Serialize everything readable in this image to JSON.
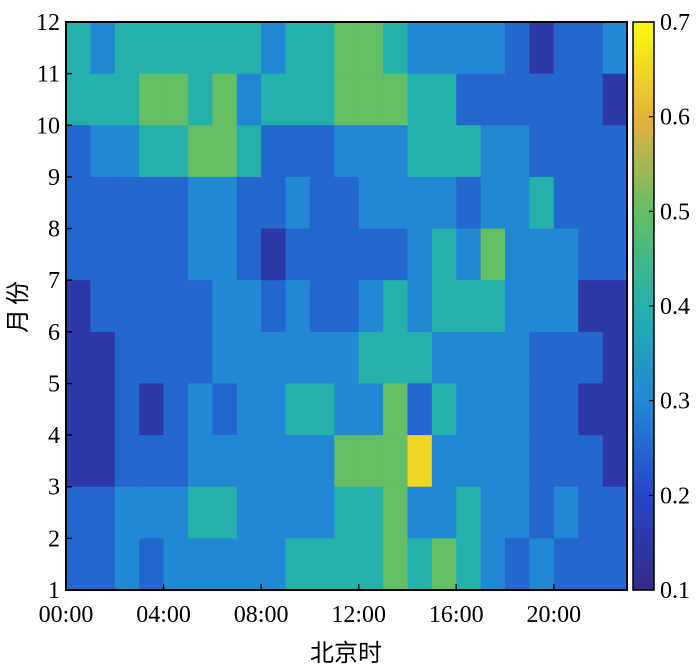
{
  "chart_data": {
    "type": "heatmap",
    "xlabel": "北京时",
    "ylabel": "月份",
    "x_tick_labels": [
      "00:00",
      "04:00",
      "08:00",
      "12:00",
      "16:00",
      "20:00"
    ],
    "x_tick_hours": [
      0,
      4,
      8,
      12,
      16,
      20
    ],
    "x_range_hours": [
      0,
      23
    ],
    "y_tick_labels": [
      "1",
      "2",
      "3",
      "4",
      "5",
      "6",
      "7",
      "8",
      "9",
      "10",
      "11",
      "12"
    ],
    "y_range": [
      1,
      12
    ],
    "colorbar": {
      "min": 0.1,
      "max": 0.7,
      "tick_labels": [
        "0.1",
        "0.2",
        "0.3",
        "0.4",
        "0.5",
        "0.6",
        "0.7"
      ],
      "tick_values": [
        0.1,
        0.2,
        0.3,
        0.4,
        0.5,
        0.6,
        0.7
      ],
      "colormap": "parula"
    },
    "grid": false,
    "rows_top_to_bottom": [
      [
        0.4,
        0.3,
        0.4,
        0.4,
        0.4,
        0.4,
        0.4,
        0.4,
        0.3,
        0.4,
        0.4,
        0.5,
        0.5,
        0.4,
        0.3,
        0.3,
        0.3,
        0.3,
        0.25,
        0.15,
        0.25,
        0.25,
        0.3
      ],
      [
        0.4,
        0.4,
        0.4,
        0.5,
        0.5,
        0.4,
        0.5,
        0.3,
        0.4,
        0.4,
        0.4,
        0.5,
        0.5,
        0.5,
        0.4,
        0.4,
        0.25,
        0.25,
        0.25,
        0.25,
        0.25,
        0.25,
        0.15
      ],
      [
        0.25,
        0.3,
        0.3,
        0.4,
        0.4,
        0.5,
        0.5,
        0.4,
        0.25,
        0.25,
        0.25,
        0.3,
        0.3,
        0.3,
        0.4,
        0.4,
        0.4,
        0.3,
        0.3,
        0.25,
        0.25,
        0.25,
        0.25
      ],
      [
        0.25,
        0.25,
        0.25,
        0.25,
        0.25,
        0.3,
        0.3,
        0.25,
        0.25,
        0.3,
        0.25,
        0.25,
        0.3,
        0.3,
        0.3,
        0.3,
        0.25,
        0.3,
        0.3,
        0.4,
        0.25,
        0.25,
        0.25
      ],
      [
        0.25,
        0.25,
        0.25,
        0.25,
        0.25,
        0.3,
        0.3,
        0.25,
        0.15,
        0.25,
        0.25,
        0.25,
        0.25,
        0.25,
        0.3,
        0.4,
        0.3,
        0.5,
        0.3,
        0.3,
        0.3,
        0.25,
        0.25
      ],
      [
        0.15,
        0.25,
        0.25,
        0.25,
        0.25,
        0.25,
        0.3,
        0.3,
        0.25,
        0.3,
        0.25,
        0.25,
        0.3,
        0.4,
        0.3,
        0.4,
        0.4,
        0.4,
        0.3,
        0.3,
        0.3,
        0.15,
        0.15
      ],
      [
        0.15,
        0.15,
        0.25,
        0.25,
        0.25,
        0.25,
        0.3,
        0.3,
        0.3,
        0.3,
        0.3,
        0.3,
        0.4,
        0.4,
        0.4,
        0.3,
        0.3,
        0.3,
        0.3,
        0.25,
        0.25,
        0.25,
        0.15
      ],
      [
        0.15,
        0.15,
        0.25,
        0.15,
        0.25,
        0.3,
        0.25,
        0.3,
        0.3,
        0.4,
        0.4,
        0.3,
        0.3,
        0.5,
        0.25,
        0.4,
        0.3,
        0.3,
        0.3,
        0.25,
        0.25,
        0.15,
        0.15
      ],
      [
        0.15,
        0.15,
        0.25,
        0.25,
        0.25,
        0.3,
        0.3,
        0.3,
        0.3,
        0.3,
        0.3,
        0.5,
        0.5,
        0.5,
        0.65,
        0.3,
        0.3,
        0.3,
        0.3,
        0.25,
        0.25,
        0.25,
        0.15
      ],
      [
        0.25,
        0.25,
        0.3,
        0.3,
        0.3,
        0.4,
        0.4,
        0.3,
        0.3,
        0.3,
        0.3,
        0.4,
        0.4,
        0.5,
        0.3,
        0.3,
        0.4,
        0.3,
        0.3,
        0.25,
        0.3,
        0.25,
        0.25
      ],
      [
        0.25,
        0.25,
        0.3,
        0.25,
        0.3,
        0.3,
        0.3,
        0.3,
        0.3,
        0.4,
        0.4,
        0.4,
        0.4,
        0.5,
        0.4,
        0.5,
        0.4,
        0.3,
        0.25,
        0.3,
        0.25,
        0.25,
        0.25
      ]
    ]
  }
}
